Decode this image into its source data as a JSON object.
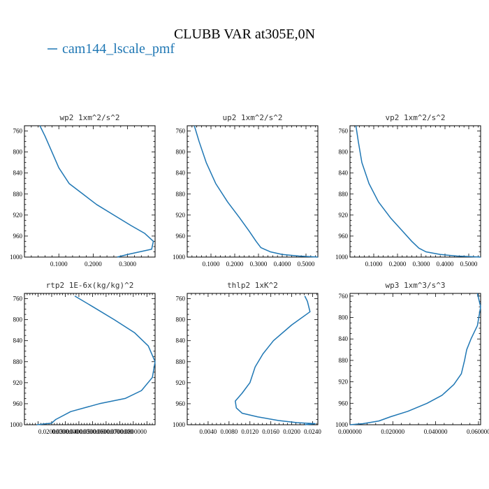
{
  "figure_title": "CLUBB VAR at305E,0N",
  "legend": {
    "label": "cam144_lscale_pmf",
    "color": "#1f77b4"
  },
  "chart_data": [
    {
      "type": "line",
      "title": "wp2  1xm^2/s^2",
      "xlim": [
        0.0,
        0.38
      ],
      "ylim": [
        1000,
        750
      ],
      "xticks": [
        0.1,
        0.2,
        0.3
      ],
      "xtick_labels": [
        "0.1000",
        "0.2000",
        "0.3000"
      ],
      "yticks": [
        760,
        800,
        840,
        880,
        920,
        960,
        1000
      ],
      "series": [
        {
          "x": [
            0.045,
            0.06,
            0.08,
            0.1,
            0.13,
            0.17,
            0.21,
            0.26,
            0.31,
            0.35,
            0.375,
            0.37,
            0.3,
            0.27
          ],
          "y": [
            750,
            770,
            800,
            830,
            860,
            880,
            900,
            920,
            940,
            955,
            970,
            985,
            995,
            1000
          ]
        }
      ]
    },
    {
      "type": "line",
      "title": "up2  1xm^2/s^2",
      "xlim": [
        0.0,
        0.55
      ],
      "ylim": [
        1000,
        750
      ],
      "xticks": [
        0.1,
        0.2,
        0.3,
        0.4,
        0.5
      ],
      "xtick_labels": [
        "0.1000",
        "0.2000",
        "0.3000",
        "0.4000",
        "0.5000"
      ],
      "yticks": [
        760,
        800,
        840,
        880,
        920,
        960,
        1000
      ],
      "series": [
        {
          "x": [
            0.03,
            0.05,
            0.08,
            0.12,
            0.17,
            0.22,
            0.26,
            0.29,
            0.31,
            0.35,
            0.4,
            0.47,
            0.55
          ],
          "y": [
            750,
            780,
            820,
            860,
            895,
            925,
            950,
            970,
            982,
            990,
            995,
            998,
            1000
          ]
        }
      ]
    },
    {
      "type": "line",
      "title": "vp2  1xm^2/s^2",
      "xlim": [
        0.0,
        0.55
      ],
      "ylim": [
        1000,
        750
      ],
      "xticks": [
        0.1,
        0.2,
        0.3,
        0.4,
        0.5
      ],
      "xtick_labels": [
        "0.1000",
        "0.2000",
        "0.3000",
        "0.4000",
        "0.5000"
      ],
      "yticks": [
        760,
        800,
        840,
        880,
        920,
        960,
        1000
      ],
      "series": [
        {
          "x": [
            0.025,
            0.035,
            0.05,
            0.08,
            0.12,
            0.17,
            0.22,
            0.26,
            0.29,
            0.32,
            0.38,
            0.45,
            0.55
          ],
          "y": [
            750,
            780,
            820,
            860,
            895,
            925,
            950,
            970,
            983,
            990,
            995,
            998,
            1000
          ]
        }
      ]
    },
    {
      "type": "line",
      "title": "rtp2  1E-6x(kg/kg)^2",
      "xlim": [
        0.0,
        9.6e-09
      ],
      "ylim": [
        1000,
        750
      ],
      "xticks": [
        2e-09,
        3e-09,
        4e-09,
        5e-09,
        6e-09,
        7e-09,
        8e-09
      ],
      "xtick_labels": [
        "0.0200000",
        "0.0300000",
        "0.0400000",
        "0.0500000",
        "0.0600000",
        "0.0700000",
        "0.0800000"
      ],
      "yticks": [
        760,
        800,
        840,
        880,
        920,
        960,
        1000
      ],
      "series": [
        {
          "x": [
            3.7e-09,
            5e-09,
            6.6e-09,
            8.1e-09,
            9.1e-09,
            9.6e-09,
            9.4e-09,
            8.6e-09,
            7.4e-09,
            5.5e-09,
            3.4e-09,
            2.3e-09,
            2e-09,
            9e-10
          ],
          "y": [
            755,
            775,
            800,
            825,
            850,
            880,
            910,
            935,
            950,
            960,
            975,
            990,
            997,
            1000
          ]
        }
      ]
    },
    {
      "type": "line",
      "title": "thlp2  1xK^2",
      "xlim": [
        0.0,
        0.025
      ],
      "ylim": [
        1000,
        750
      ],
      "xticks": [
        0.004,
        0.008,
        0.012,
        0.016,
        0.02,
        0.024
      ],
      "xtick_labels": [
        "0.0040",
        "0.0080",
        "0.0120",
        "0.0160",
        "0.0200",
        "0.0240"
      ],
      "yticks": [
        760,
        800,
        840,
        880,
        920,
        960,
        1000
      ],
      "series": [
        {
          "x": [
            0.0225,
            0.023,
            0.0235,
            0.02,
            0.0165,
            0.0145,
            0.013,
            0.012,
            0.0105,
            0.0092,
            0.0094,
            0.0105,
            0.0135,
            0.0175,
            0.021,
            0.0245,
            0.0225
          ],
          "y": [
            755,
            765,
            785,
            810,
            840,
            865,
            890,
            920,
            940,
            955,
            968,
            978,
            985,
            992,
            996,
            998,
            1000
          ]
        }
      ]
    },
    {
      "type": "line",
      "title": "wp3  1xm^3/s^3",
      "xlim": [
        0.0,
        0.061
      ],
      "ylim": [
        1000,
        755
      ],
      "xticks": [
        0.0,
        0.02,
        0.04,
        0.06
      ],
      "xtick_labels": [
        "0.000000",
        "0.020000",
        "0.040000",
        "0.060000"
      ],
      "yticks": [
        760,
        800,
        840,
        880,
        920,
        960,
        1000
      ],
      "series": [
        {
          "x": [
            0.0595,
            0.061,
            0.0595,
            0.0565,
            0.0545,
            0.0535,
            0.052,
            0.0485,
            0.043,
            0.036,
            0.027,
            0.019,
            0.0135,
            0.006,
            0.0
          ],
          "y": [
            755,
            780,
            815,
            840,
            860,
            880,
            905,
            925,
            945,
            960,
            975,
            985,
            993,
            998,
            1000
          ]
        }
      ]
    }
  ]
}
